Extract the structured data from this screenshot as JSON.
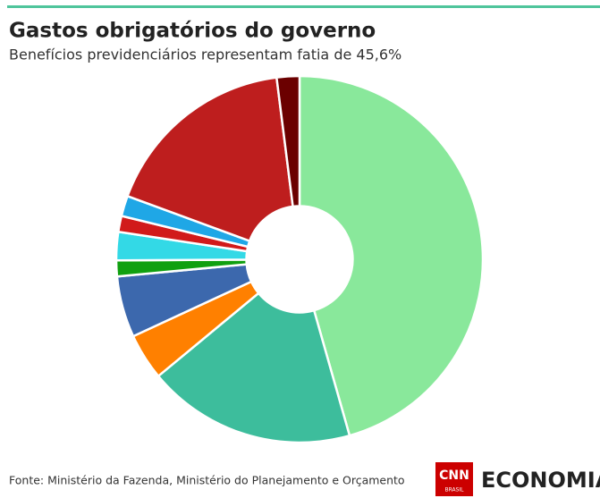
{
  "chart_data": {
    "type": "pie",
    "title": "Gastos obrigatórios do governo",
    "subtitle": "Benefícios previdenciários representam fatia de 45,6%",
    "values": [
      45.6,
      18.4,
      4.1,
      5.4,
      1.4,
      2.5,
      1.4,
      1.8,
      17.4,
      2.0
    ],
    "colors": [
      "#89e89b",
      "#3dbd9c",
      "#ff8000",
      "#3c68ad",
      "#10a010",
      "#33d9e6",
      "#d11a1a",
      "#1fa7e6",
      "#be1e1e",
      "#6b0000"
    ],
    "inner_radius_ratio": 0.29
  },
  "footer": {
    "source": "Fonte: Ministério da Fazenda, Ministério do Planejamento e Orçamento",
    "logo_cnn": "CNN",
    "logo_brasil": "BRASIL",
    "logo_economia": "ECONOMIA"
  }
}
